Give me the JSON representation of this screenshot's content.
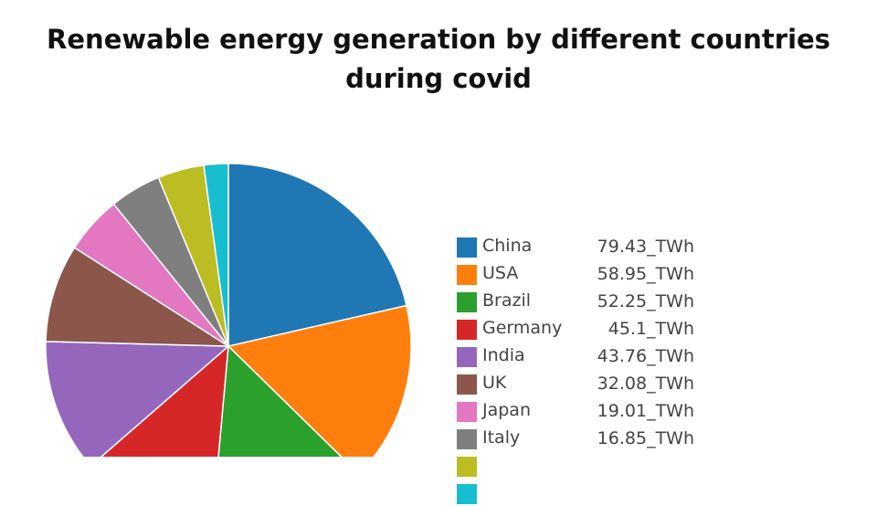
{
  "chart_data": {
    "type": "pie",
    "title": "Renewable energy generation by different countries during covid",
    "legend_position": "right",
    "slices": [
      {
        "label": "China",
        "value": 79.43,
        "value_text": "79.43_TWh",
        "color": "#1f77b4"
      },
      {
        "label": "USA",
        "value": 58.95,
        "value_text": "58.95_TWh",
        "color": "#ff7f0e"
      },
      {
        "label": "Brazil",
        "value": 52.25,
        "value_text": "52.25_TWh",
        "color": "#2ca02c"
      },
      {
        "label": "Germany",
        "value": 45.1,
        "value_text": "45.1_TWh",
        "color": "#d62728"
      },
      {
        "label": "India",
        "value": 43.76,
        "value_text": "43.76_TWh",
        "color": "#9467bd"
      },
      {
        "label": "UK",
        "value": 32.08,
        "value_text": "32.08_TWh",
        "color": "#8c564b"
      },
      {
        "label": "Japan",
        "value": 19.01,
        "value_text": "19.01_TWh",
        "color": "#e377c2"
      },
      {
        "label": "Italy",
        "value": 16.85,
        "value_text": "16.85_TWh",
        "color": "#7f7f7f"
      },
      {
        "label": "",
        "value": 15.2,
        "value_text": "",
        "color": "#bcbd22"
      },
      {
        "label": "",
        "value": 8.0,
        "value_text": "",
        "color": "#17becf"
      }
    ]
  }
}
